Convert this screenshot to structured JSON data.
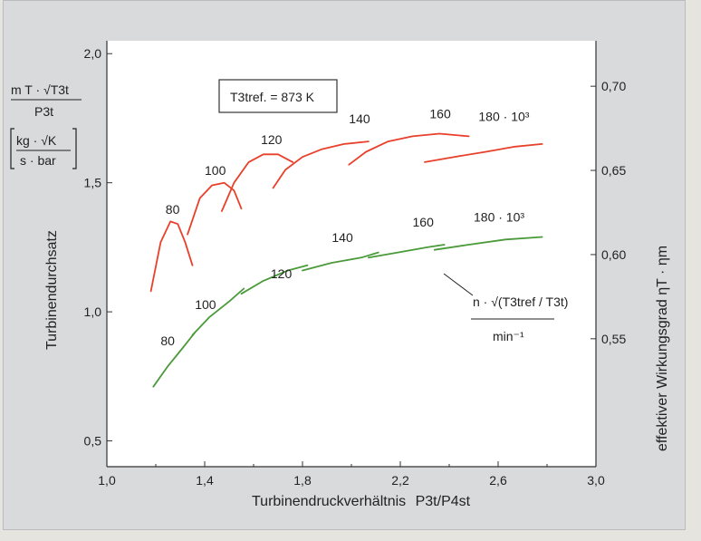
{
  "chart_data": {
    "type": "line",
    "xlabel": "Turbinendruckverhältnis",
    "xlabel_sub": "P3t/P4st",
    "ylabel_left": "Turbinendurchsatz",
    "ylabel_right": "effektiver Wirkungsgrad ηT · ηm",
    "xlim": [
      1.0,
      3.0
    ],
    "ylim": [
      0.4,
      2.05
    ],
    "right_ylim": [
      0.474,
      0.727
    ],
    "x_ticks": [
      "1,0",
      "1,4",
      "1,8",
      "2,2",
      "2,6",
      "3,0"
    ],
    "x_tick_values": [
      1.0,
      1.4,
      1.8,
      2.2,
      2.6,
      3.0
    ],
    "y_ticks": [
      "0,5",
      "1,0",
      "1,5",
      "2,0"
    ],
    "y_tick_values": [
      0.5,
      1.0,
      1.5,
      2.0
    ],
    "right_ticks": [
      "0,55",
      "0,60",
      "0,65",
      "0,70"
    ],
    "right_tick_values": [
      0.55,
      0.6,
      0.65,
      0.7
    ],
    "annotation_box": "T3tref. = 873 K",
    "flow_unit_top": "m T · √T3t",
    "flow_unit_bottom": "P3t",
    "flow_unit_bracket_top": "kg · √K",
    "flow_unit_bracket_bottom": "s · bar",
    "speed_unit_top": "n · √(T3tref / T3t)",
    "speed_unit_bottom": "min⁻¹",
    "efficiency_curves": {
      "color": "#e8402a",
      "series": [
        {
          "name": "80",
          "points": [
            [
              1.18,
              1.08
            ],
            [
              1.22,
              1.27
            ],
            [
              1.26,
              1.35
            ],
            [
              1.29,
              1.34
            ],
            [
              1.32,
              1.27
            ],
            [
              1.35,
              1.18
            ]
          ]
        },
        {
          "name": "100",
          "points": [
            [
              1.33,
              1.3
            ],
            [
              1.38,
              1.44
            ],
            [
              1.43,
              1.49
            ],
            [
              1.48,
              1.5
            ],
            [
              1.52,
              1.47
            ],
            [
              1.55,
              1.4
            ]
          ]
        },
        {
          "name": "120",
          "points": [
            [
              1.47,
              1.39
            ],
            [
              1.52,
              1.5
            ],
            [
              1.58,
              1.58
            ],
            [
              1.64,
              1.61
            ],
            [
              1.7,
              1.61
            ],
            [
              1.76,
              1.58
            ]
          ]
        },
        {
          "name": "140",
          "points": [
            [
              1.68,
              1.48
            ],
            [
              1.73,
              1.55
            ],
            [
              1.8,
              1.6
            ],
            [
              1.88,
              1.63
            ],
            [
              1.97,
              1.65
            ],
            [
              2.07,
              1.66
            ]
          ]
        },
        {
          "name": "160",
          "points": [
            [
              1.99,
              1.57
            ],
            [
              2.06,
              1.62
            ],
            [
              2.15,
              1.66
            ],
            [
              2.25,
              1.68
            ],
            [
              2.36,
              1.69
            ],
            [
              2.48,
              1.68
            ]
          ]
        },
        {
          "name": "180 · 10³",
          "points": [
            [
              2.3,
              1.58
            ],
            [
              2.42,
              1.6
            ],
            [
              2.55,
              1.62
            ],
            [
              2.67,
              1.64
            ],
            [
              2.78,
              1.65
            ]
          ]
        }
      ]
    },
    "flow_curves": {
      "color": "#4a9a3a",
      "series": [
        {
          "name": "80",
          "points": [
            [
              1.19,
              0.71
            ],
            [
              1.25,
              0.79
            ],
            [
              1.31,
              0.86
            ],
            [
              1.36,
              0.92
            ]
          ]
        },
        {
          "name": "100",
          "points": [
            [
              1.35,
              0.91
            ],
            [
              1.42,
              0.98
            ],
            [
              1.5,
              1.04
            ],
            [
              1.56,
              1.09
            ]
          ]
        },
        {
          "name": "120",
          "points": [
            [
              1.55,
              1.07
            ],
            [
              1.64,
              1.12
            ],
            [
              1.74,
              1.16
            ],
            [
              1.82,
              1.18
            ]
          ]
        },
        {
          "name": "140",
          "points": [
            [
              1.8,
              1.16
            ],
            [
              1.92,
              1.19
            ],
            [
              2.04,
              1.21
            ],
            [
              2.11,
              1.23
            ]
          ]
        },
        {
          "name": "160",
          "points": [
            [
              2.07,
              1.21
            ],
            [
              2.19,
              1.23
            ],
            [
              2.31,
              1.25
            ],
            [
              2.38,
              1.26
            ]
          ]
        },
        {
          "name": "180 · 10³",
          "points": [
            [
              2.34,
              1.24
            ],
            [
              2.48,
              1.26
            ],
            [
              2.63,
              1.28
            ],
            [
              2.78,
              1.29
            ]
          ]
        }
      ]
    },
    "flow_curve_labels": [
      "80",
      "100",
      "120",
      "140",
      "160",
      "180 · 10³"
    ],
    "efficiency_curve_labels": [
      "80",
      "100",
      "120",
      "140",
      "160",
      "180 · 10³"
    ]
  }
}
